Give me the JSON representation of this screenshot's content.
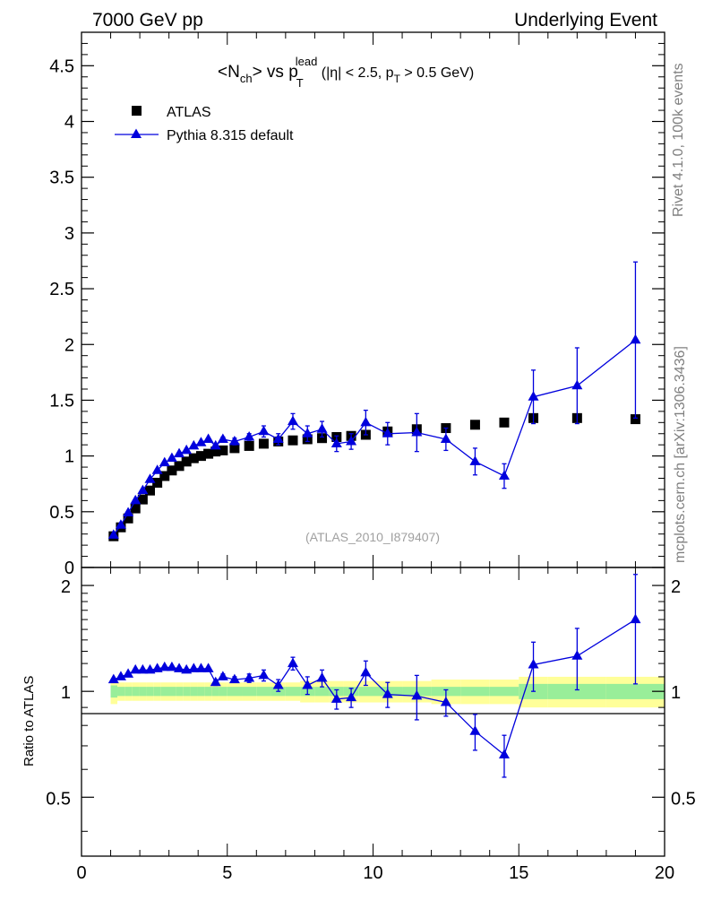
{
  "header": {
    "left": "7000 GeV pp",
    "right": "Underlying Event"
  },
  "side_labels": {
    "rivet": "Rivet 4.1.0,  100k events",
    "mcplots": "mcplots.cern.ch [arXiv:1306.3436]"
  },
  "chart_data": [
    {
      "type": "scatter",
      "panel": "main",
      "title": {
        "base1": "<N",
        "sub1": "ch",
        "base2": "> vs p",
        "sub2": "T",
        "sup2": "lead",
        "base3": " (|η| < 2.5, p",
        "sub3": "T",
        "base4": " > 0.5 GeV)"
      },
      "watermark": "(ATLAS_2010_I879407)",
      "xlim": [
        0,
        20
      ],
      "ylim": [
        0,
        4.8
      ],
      "yticks": [
        0,
        0.5,
        1,
        1.5,
        2,
        2.5,
        3,
        3.5,
        4,
        4.5
      ],
      "ytick_labels": [
        "0",
        "0.5",
        "1",
        "1.5",
        "2",
        "2.5",
        "3",
        "3.5",
        "4",
        "4.5"
      ],
      "legend_position": "top-left",
      "colors": {
        "data": "#000000",
        "mc": "#0000dd"
      },
      "series": [
        {
          "name": "ATLAS",
          "marker": "square",
          "x": [
            1.1,
            1.35,
            1.6,
            1.85,
            2.1,
            2.35,
            2.6,
            2.85,
            3.1,
            3.35,
            3.6,
            3.85,
            4.1,
            4.35,
            4.6,
            4.85,
            5.25,
            5.75,
            6.25,
            6.75,
            7.25,
            7.75,
            8.25,
            8.75,
            9.25,
            9.75,
            10.5,
            11.5,
            12.5,
            13.5,
            14.5,
            15.5,
            17.0,
            19.0
          ],
          "y": [
            0.28,
            0.36,
            0.44,
            0.53,
            0.61,
            0.69,
            0.76,
            0.82,
            0.87,
            0.91,
            0.95,
            0.98,
            1.0,
            1.02,
            1.04,
            1.05,
            1.07,
            1.09,
            1.11,
            1.13,
            1.14,
            1.15,
            1.16,
            1.17,
            1.18,
            1.19,
            1.22,
            1.24,
            1.25,
            1.28,
            1.3,
            1.34,
            1.34,
            1.33
          ]
        },
        {
          "name": "Pythia 8.315 default",
          "marker": "triangle",
          "x": [
            1.1,
            1.35,
            1.6,
            1.85,
            2.1,
            2.35,
            2.6,
            2.85,
            3.1,
            3.35,
            3.6,
            3.85,
            4.1,
            4.35,
            4.6,
            4.85,
            5.25,
            5.75,
            6.25,
            6.75,
            7.25,
            7.75,
            8.25,
            8.75,
            9.25,
            9.75,
            10.5,
            11.5,
            12.5,
            13.5,
            14.5,
            15.5,
            17.0,
            19.0
          ],
          "y": [
            0.29,
            0.38,
            0.49,
            0.6,
            0.69,
            0.79,
            0.87,
            0.94,
            0.98,
            1.02,
            1.05,
            1.09,
            1.12,
            1.15,
            1.09,
            1.15,
            1.13,
            1.17,
            1.22,
            1.15,
            1.31,
            1.2,
            1.24,
            1.11,
            1.13,
            1.3,
            1.2,
            1.21,
            1.15,
            0.95,
            0.82,
            1.53,
            1.63,
            2.04
          ],
          "err": [
            0.01,
            0.01,
            0.01,
            0.01,
            0.01,
            0.01,
            0.01,
            0.01,
            0.01,
            0.01,
            0.01,
            0.01,
            0.01,
            0.01,
            0.02,
            0.02,
            0.03,
            0.03,
            0.05,
            0.05,
            0.07,
            0.07,
            0.07,
            0.07,
            0.07,
            0.11,
            0.1,
            0.17,
            0.1,
            0.12,
            0.11,
            0.24,
            0.34,
            0.7
          ]
        }
      ]
    },
    {
      "type": "scatter",
      "panel": "ratio",
      "ylabel": "Ratio to ATLAS",
      "xlim": [
        0,
        20
      ],
      "ylim": [
        0.34,
        2.25
      ],
      "yticks": [
        0.5,
        1,
        2
      ],
      "ytick_labels": [
        "0.5",
        "1",
        "2"
      ],
      "xticks": [
        0,
        5,
        10,
        15,
        20
      ],
      "xtick_labels": [
        "0",
        "5",
        "10",
        "15",
        "20"
      ],
      "band_colors": {
        "inner": "#99ee99",
        "outer": "#ffff99"
      },
      "band_edges": [
        1.0,
        1.23,
        1.48,
        1.73,
        1.98,
        2.23,
        2.48,
        2.73,
        2.98,
        3.23,
        3.48,
        3.73,
        3.98,
        4.23,
        4.48,
        4.73,
        5.0,
        5.5,
        6.0,
        6.5,
        7.0,
        7.5,
        8.0,
        8.5,
        9.0,
        9.5,
        10.0,
        11.0,
        12.0,
        13.0,
        14.0,
        15.0,
        16.0,
        18.0,
        20.0
      ],
      "band_inner": [
        0.04,
        0.03,
        0.03,
        0.03,
        0.03,
        0.03,
        0.03,
        0.03,
        0.03,
        0.03,
        0.03,
        0.03,
        0.03,
        0.03,
        0.03,
        0.03,
        0.03,
        0.03,
        0.03,
        0.03,
        0.03,
        0.03,
        0.03,
        0.03,
        0.03,
        0.03,
        0.03,
        0.03,
        0.03,
        0.03,
        0.03,
        0.05,
        0.05,
        0.05
      ],
      "band_outer": [
        0.08,
        0.06,
        0.06,
        0.06,
        0.06,
        0.06,
        0.06,
        0.06,
        0.06,
        0.06,
        0.06,
        0.06,
        0.06,
        0.06,
        0.06,
        0.06,
        0.06,
        0.06,
        0.06,
        0.06,
        0.06,
        0.07,
        0.07,
        0.07,
        0.07,
        0.07,
        0.07,
        0.07,
        0.08,
        0.08,
        0.08,
        0.1,
        0.1,
        0.1
      ],
      "series": [
        {
          "name": "Pythia 8.315 default / ATLAS",
          "marker": "triangle",
          "x": [
            1.1,
            1.35,
            1.6,
            1.85,
            2.1,
            2.35,
            2.6,
            2.85,
            3.1,
            3.35,
            3.6,
            3.85,
            4.1,
            4.35,
            4.6,
            4.85,
            5.25,
            5.75,
            6.25,
            6.75,
            7.25,
            7.75,
            8.25,
            8.75,
            9.25,
            9.75,
            10.5,
            11.5,
            12.5,
            13.5,
            14.5,
            15.5,
            17.0,
            19.0
          ],
          "y": [
            1.08,
            1.1,
            1.12,
            1.15,
            1.15,
            1.15,
            1.16,
            1.17,
            1.17,
            1.16,
            1.15,
            1.16,
            1.16,
            1.16,
            1.06,
            1.1,
            1.08,
            1.09,
            1.11,
            1.04,
            1.2,
            1.04,
            1.09,
            0.95,
            0.96,
            1.13,
            0.98,
            0.97,
            0.93,
            0.77,
            0.66,
            1.19,
            1.26,
            1.6
          ],
          "err": [
            0.01,
            0.01,
            0.01,
            0.01,
            0.01,
            0.01,
            0.01,
            0.01,
            0.01,
            0.01,
            0.01,
            0.01,
            0.01,
            0.01,
            0.02,
            0.02,
            0.02,
            0.03,
            0.04,
            0.04,
            0.05,
            0.06,
            0.06,
            0.06,
            0.06,
            0.09,
            0.08,
            0.14,
            0.08,
            0.09,
            0.09,
            0.19,
            0.25,
            0.55
          ]
        }
      ]
    }
  ]
}
